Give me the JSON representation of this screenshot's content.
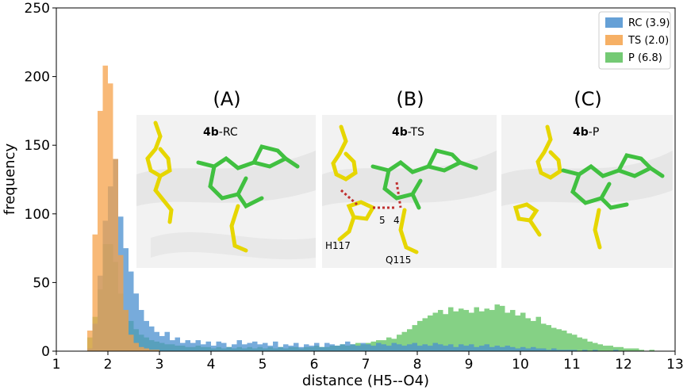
{
  "chart_data": {
    "type": "bar",
    "subtype": "overlaid-histogram",
    "xlabel": "distance (H5--O4)",
    "ylabel": "frequency",
    "xlim": [
      1,
      13
    ],
    "ylim": [
      0,
      250
    ],
    "xticks": [
      "1",
      "2",
      "3",
      "4",
      "5",
      "6",
      "7",
      "8",
      "9",
      "10",
      "11",
      "12",
      "13"
    ],
    "yticks": [
      "0",
      "50",
      "100",
      "150",
      "200",
      "250"
    ],
    "legend_position": "top-right",
    "grid": false,
    "bin_width": 0.1,
    "series": [
      {
        "name": "RC (3.9)",
        "color": "#4a8fcf",
        "bins": [
          [
            1.6,
            2
          ],
          [
            1.7,
            20
          ],
          [
            1.8,
            55
          ],
          [
            1.9,
            95
          ],
          [
            2.0,
            120
          ],
          [
            2.1,
            140
          ],
          [
            2.2,
            98
          ],
          [
            2.3,
            75
          ],
          [
            2.4,
            58
          ],
          [
            2.5,
            42
          ],
          [
            2.6,
            30
          ],
          [
            2.7,
            22
          ],
          [
            2.8,
            18
          ],
          [
            2.9,
            14
          ],
          [
            3.0,
            11
          ],
          [
            3.1,
            14
          ],
          [
            3.2,
            8
          ],
          [
            3.3,
            10
          ],
          [
            3.4,
            6
          ],
          [
            3.5,
            8
          ],
          [
            3.6,
            6
          ],
          [
            3.7,
            8
          ],
          [
            3.8,
            5
          ],
          [
            3.9,
            7
          ],
          [
            4.0,
            4
          ],
          [
            4.1,
            7
          ],
          [
            4.2,
            6
          ],
          [
            4.3,
            3
          ],
          [
            4.4,
            5
          ],
          [
            4.5,
            8
          ],
          [
            4.6,
            5
          ],
          [
            4.7,
            6
          ],
          [
            4.8,
            7
          ],
          [
            4.9,
            5
          ],
          [
            5.0,
            6
          ],
          [
            5.1,
            4
          ],
          [
            5.2,
            7
          ],
          [
            5.3,
            3
          ],
          [
            5.4,
            5
          ],
          [
            5.5,
            4
          ],
          [
            5.6,
            6
          ],
          [
            5.7,
            3
          ],
          [
            5.8,
            5
          ],
          [
            5.9,
            4
          ],
          [
            6.0,
            6
          ],
          [
            6.1,
            3
          ],
          [
            6.2,
            6
          ],
          [
            6.3,
            5
          ],
          [
            6.4,
            4
          ],
          [
            6.5,
            5
          ],
          [
            6.6,
            7
          ],
          [
            6.7,
            5
          ],
          [
            6.8,
            4
          ],
          [
            6.9,
            6
          ],
          [
            7.0,
            5
          ],
          [
            7.1,
            4
          ],
          [
            7.2,
            6
          ],
          [
            7.3,
            5
          ],
          [
            7.4,
            4
          ],
          [
            7.5,
            6
          ],
          [
            7.6,
            5
          ],
          [
            7.7,
            4
          ],
          [
            7.8,
            5
          ],
          [
            7.9,
            6
          ],
          [
            8.0,
            4
          ],
          [
            8.1,
            5
          ],
          [
            8.2,
            4
          ],
          [
            8.3,
            6
          ],
          [
            8.4,
            5
          ],
          [
            8.5,
            4
          ],
          [
            8.6,
            5
          ],
          [
            8.7,
            3
          ],
          [
            8.8,
            5
          ],
          [
            8.9,
            4
          ],
          [
            9.0,
            5
          ],
          [
            9.1,
            3
          ],
          [
            9.2,
            4
          ],
          [
            9.3,
            5
          ],
          [
            9.4,
            3
          ],
          [
            9.5,
            4
          ],
          [
            9.6,
            3
          ],
          [
            9.7,
            4
          ],
          [
            9.8,
            3
          ],
          [
            9.9,
            2
          ],
          [
            10.0,
            3
          ],
          [
            10.1,
            2
          ],
          [
            10.2,
            3
          ],
          [
            10.3,
            2
          ],
          [
            10.4,
            2
          ],
          [
            10.5,
            1
          ],
          [
            10.6,
            2
          ],
          [
            10.7,
            1
          ],
          [
            10.8,
            1
          ],
          [
            10.9,
            1
          ],
          [
            11.0,
            1
          ],
          [
            11.2,
            1
          ],
          [
            11.4,
            1
          ],
          [
            11.8,
            1
          ]
        ]
      },
      {
        "name": "TS (2.0)",
        "color": "#f5a24a",
        "bins": [
          [
            1.6,
            15
          ],
          [
            1.7,
            85
          ],
          [
            1.8,
            175
          ],
          [
            1.9,
            208
          ],
          [
            2.0,
            195
          ],
          [
            2.1,
            140
          ],
          [
            2.2,
            70
          ],
          [
            2.3,
            30
          ],
          [
            2.4,
            12
          ],
          [
            2.5,
            6
          ],
          [
            2.6,
            3
          ],
          [
            2.7,
            2
          ],
          [
            2.8,
            1
          ],
          [
            2.9,
            1
          ]
        ]
      },
      {
        "name": "P (6.8)",
        "color": "#5cc15c",
        "bins": [
          [
            1.6,
            10
          ],
          [
            1.7,
            25
          ],
          [
            1.8,
            45
          ],
          [
            1.9,
            78
          ],
          [
            2.0,
            78
          ],
          [
            2.1,
            65
          ],
          [
            2.2,
            42
          ],
          [
            2.3,
            30
          ],
          [
            2.4,
            22
          ],
          [
            2.5,
            16
          ],
          [
            2.6,
            12
          ],
          [
            2.7,
            10
          ],
          [
            2.8,
            8
          ],
          [
            2.9,
            7
          ],
          [
            3.0,
            6
          ],
          [
            3.1,
            5
          ],
          [
            3.2,
            5
          ],
          [
            3.3,
            4
          ],
          [
            3.4,
            4
          ],
          [
            3.5,
            3
          ],
          [
            3.6,
            3
          ],
          [
            3.7,
            4
          ],
          [
            3.8,
            3
          ],
          [
            3.9,
            3
          ],
          [
            4.0,
            2
          ],
          [
            4.1,
            3
          ],
          [
            4.2,
            2
          ],
          [
            4.3,
            3
          ],
          [
            4.4,
            2
          ],
          [
            4.5,
            3
          ],
          [
            4.6,
            2
          ],
          [
            4.7,
            3
          ],
          [
            4.8,
            2
          ],
          [
            4.9,
            3
          ],
          [
            5.0,
            2
          ],
          [
            5.1,
            3
          ],
          [
            5.2,
            2
          ],
          [
            5.3,
            3
          ],
          [
            5.4,
            2
          ],
          [
            5.5,
            3
          ],
          [
            5.6,
            3
          ],
          [
            5.7,
            2
          ],
          [
            5.8,
            3
          ],
          [
            5.9,
            3
          ],
          [
            6.0,
            4
          ],
          [
            6.1,
            3
          ],
          [
            6.2,
            3
          ],
          [
            6.3,
            4
          ],
          [
            6.4,
            4
          ],
          [
            6.5,
            5
          ],
          [
            6.6,
            4
          ],
          [
            6.7,
            5
          ],
          [
            6.8,
            6
          ],
          [
            6.9,
            5
          ],
          [
            7.0,
            6
          ],
          [
            7.1,
            7
          ],
          [
            7.2,
            8
          ],
          [
            7.3,
            8
          ],
          [
            7.4,
            10
          ],
          [
            7.5,
            9
          ],
          [
            7.6,
            12
          ],
          [
            7.7,
            14
          ],
          [
            7.8,
            16
          ],
          [
            7.9,
            19
          ],
          [
            8.0,
            22
          ],
          [
            8.1,
            24
          ],
          [
            8.2,
            26
          ],
          [
            8.3,
            28
          ],
          [
            8.4,
            30
          ],
          [
            8.5,
            27
          ],
          [
            8.6,
            32
          ],
          [
            8.7,
            29
          ],
          [
            8.8,
            31
          ],
          [
            8.9,
            30
          ],
          [
            9.0,
            28
          ],
          [
            9.1,
            32
          ],
          [
            9.2,
            29
          ],
          [
            9.3,
            31
          ],
          [
            9.4,
            30
          ],
          [
            9.5,
            34
          ],
          [
            9.6,
            33
          ],
          [
            9.7,
            28
          ],
          [
            9.8,
            30
          ],
          [
            9.9,
            26
          ],
          [
            10.0,
            28
          ],
          [
            10.1,
            24
          ],
          [
            10.2,
            22
          ],
          [
            10.3,
            25
          ],
          [
            10.4,
            20
          ],
          [
            10.5,
            19
          ],
          [
            10.6,
            17
          ],
          [
            10.7,
            16
          ],
          [
            10.8,
            15
          ],
          [
            10.9,
            13
          ],
          [
            11.0,
            12
          ],
          [
            11.1,
            10
          ],
          [
            11.2,
            9
          ],
          [
            11.3,
            7
          ],
          [
            11.4,
            6
          ],
          [
            11.5,
            5
          ],
          [
            11.6,
            4
          ],
          [
            11.7,
            4
          ],
          [
            11.8,
            3
          ],
          [
            11.9,
            3
          ],
          [
            12.0,
            2
          ],
          [
            12.1,
            2
          ],
          [
            12.2,
            2
          ],
          [
            12.3,
            1
          ],
          [
            12.5,
            1
          ]
        ]
      }
    ]
  },
  "insets": [
    {
      "letter": "(A)",
      "title_bold": "4b",
      "title_rest": "-RC",
      "annotations": []
    },
    {
      "letter": "(B)",
      "title_bold": "4b",
      "title_rest": "-TS",
      "annotations": [
        "5",
        "4",
        "H117",
        "Q115"
      ]
    },
    {
      "letter": "(C)",
      "title_bold": "4b",
      "title_rest": "-P",
      "annotations": []
    }
  ]
}
